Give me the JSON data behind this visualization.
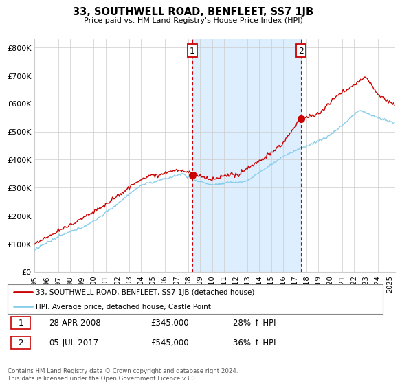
{
  "title": "33, SOUTHWELL ROAD, BENFLEET, SS7 1JB",
  "subtitle": "Price paid vs. HM Land Registry's House Price Index (HPI)",
  "ylabel_ticks": [
    "£0",
    "£100K",
    "£200K",
    "£300K",
    "£400K",
    "£500K",
    "£600K",
    "£700K",
    "£800K"
  ],
  "ytick_vals": [
    0,
    100000,
    200000,
    300000,
    400000,
    500000,
    600000,
    700000,
    800000
  ],
  "ylim": [
    0,
    830000
  ],
  "sale1_year": 2008.32,
  "sale1_price": 345000,
  "sale1_label": "1",
  "sale1_date": "28-APR-2008",
  "sale1_price_str": "£345,000",
  "sale1_pct": "28% ↑ HPI",
  "sale2_year": 2017.5,
  "sale2_price": 545000,
  "sale2_label": "2",
  "sale2_date": "05-JUL-2017",
  "sale2_price_str": "£545,000",
  "sale2_pct": "36% ↑ HPI",
  "hpi_color": "#87CEEB",
  "sale_color": "#cc0000",
  "vline_color": "#cc0000",
  "shade_color": "#ddeeff",
  "legend_label_sale": "33, SOUTHWELL ROAD, BENFLEET, SS7 1JB (detached house)",
  "legend_label_hpi": "HPI: Average price, detached house, Castle Point",
  "footer": "Contains HM Land Registry data © Crown copyright and database right 2024.\nThis data is licensed under the Open Government Licence v3.0.",
  "background_color": "#ffffff",
  "grid_color": "#cccccc"
}
